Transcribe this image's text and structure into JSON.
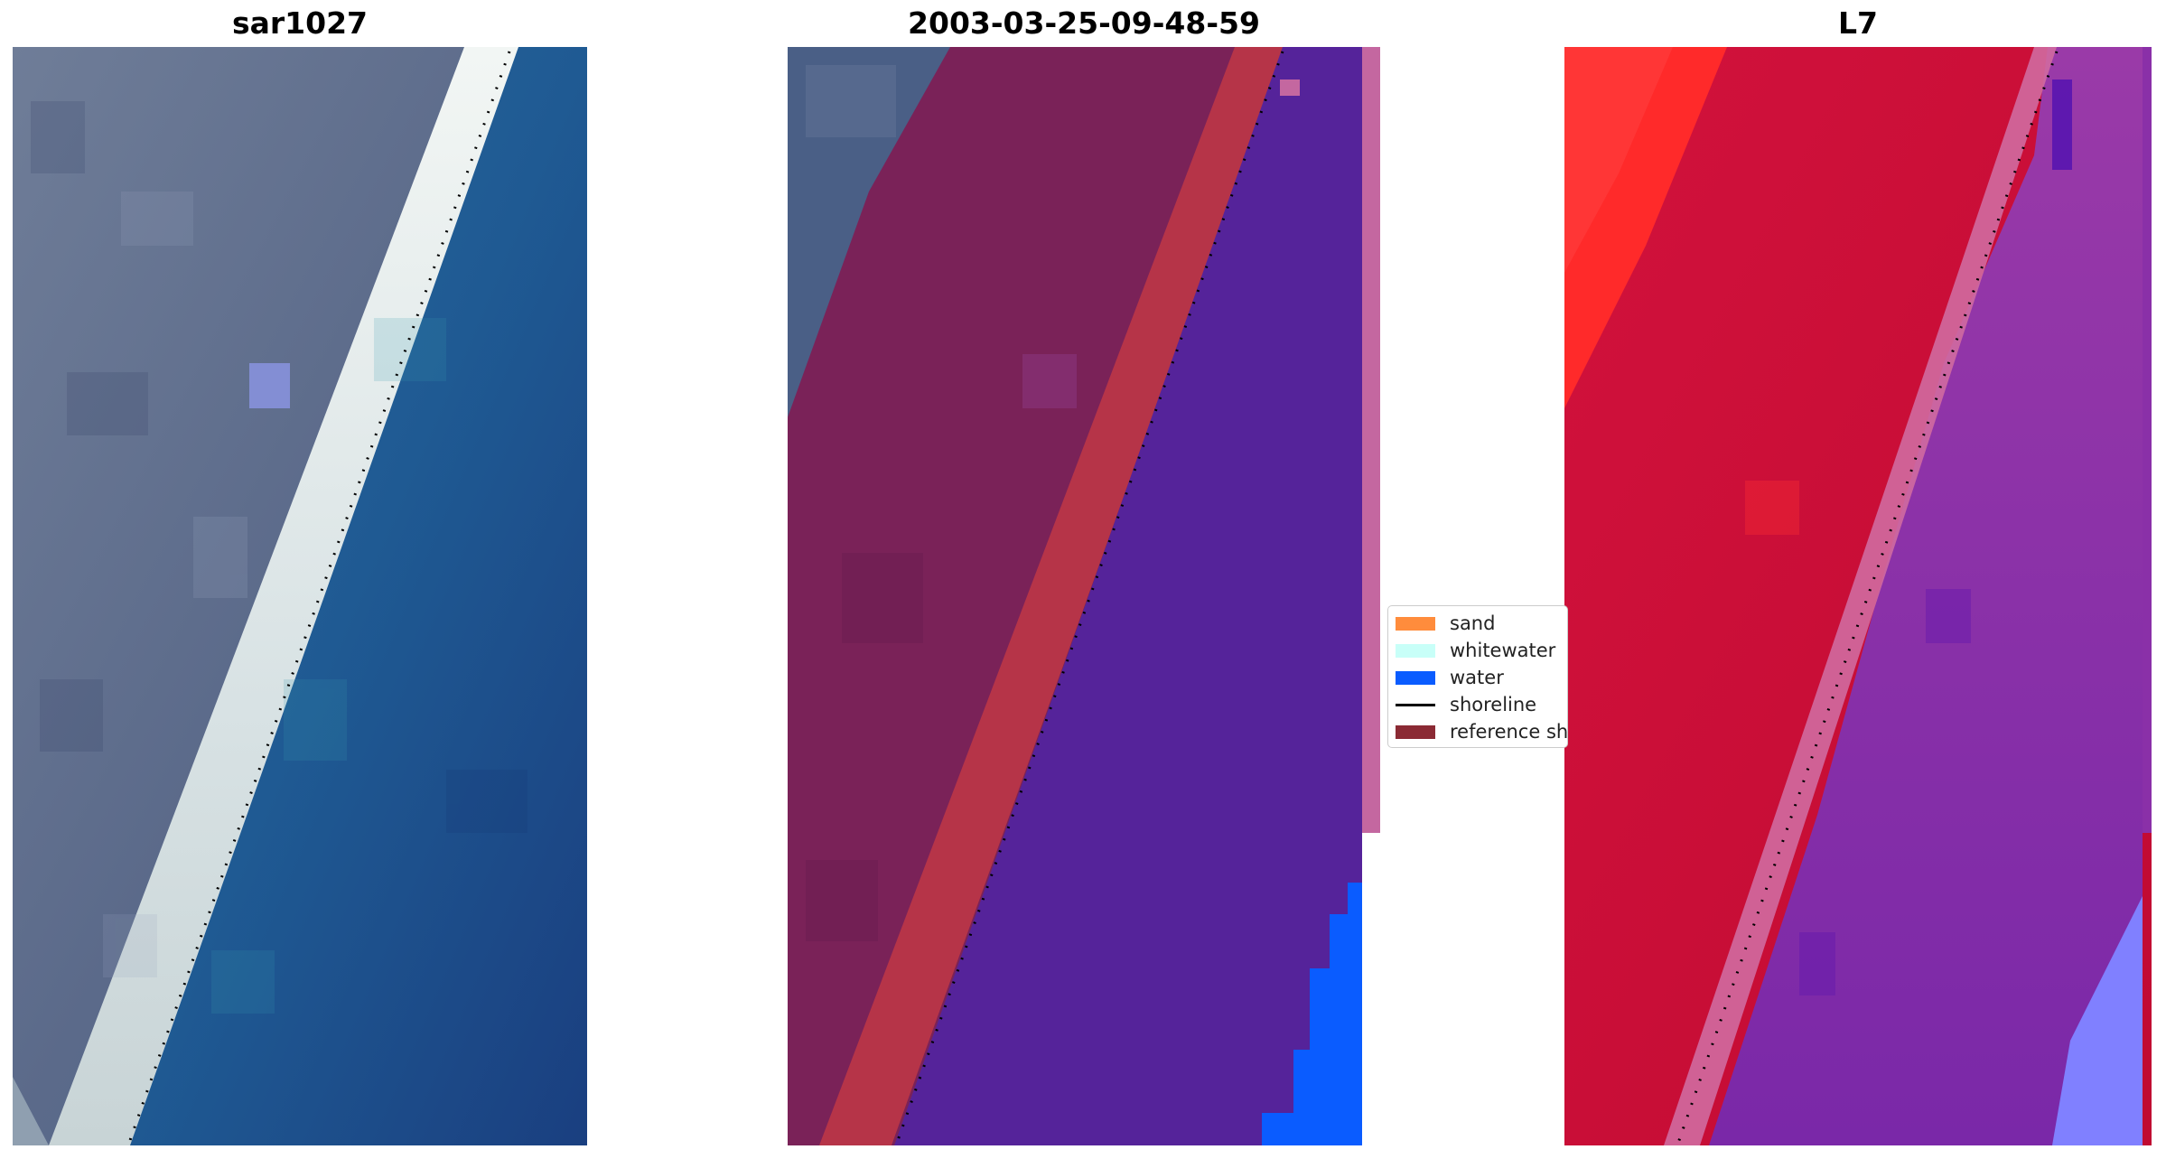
{
  "panels": [
    {
      "title": "sar1027",
      "icon": "rgb-image"
    },
    {
      "title": "2003-03-25-09-48-59",
      "icon": "classified-image"
    },
    {
      "title": "L7",
      "icon": "mndwi-image"
    }
  ],
  "legend": {
    "items": [
      {
        "label": "sand",
        "color": "#ff8c3c",
        "kind": "patch"
      },
      {
        "label": "whitewater",
        "color": "#c8fff8",
        "kind": "patch"
      },
      {
        "label": "water",
        "color": "#0a5cff",
        "kind": "patch"
      },
      {
        "label": "shoreline",
        "color": "#000000",
        "kind": "line"
      },
      {
        "label": "reference shoreline",
        "color": "#8b2a34",
        "kind": "patch"
      }
    ]
  },
  "colors": {
    "land_rgb": "#5f6e8e",
    "beach_white": "#e6edef",
    "sea_rgb": "#1f5590",
    "class_land": "#7a2258",
    "class_sand_overlay": "#b63448",
    "class_water_overlay": "#55239a",
    "class_water_blue": "#0a5cff",
    "class_edge_strip": "#c467a0",
    "index_land": "#c8103a",
    "index_land_bright": "#ff2a2a",
    "index_water": "#8a30a8",
    "index_water_light": "#8080ff"
  }
}
